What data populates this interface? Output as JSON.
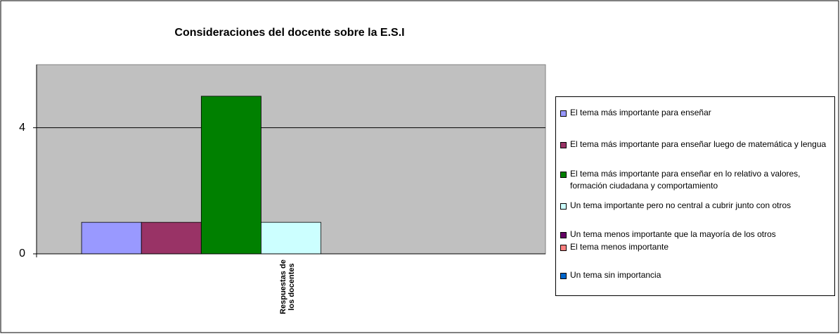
{
  "chart_data": {
    "type": "bar",
    "title": "Consideraciones del docente sobre la E.S.I",
    "categories": [
      "Respuestas de los docentes"
    ],
    "series": [
      {
        "name": "El tema más importante para enseñar",
        "color": "#9999ff",
        "values": [
          1
        ]
      },
      {
        "name": "El tema más importante para enseñar luego de matemática y lengua",
        "color": "#993366",
        "values": [
          1
        ]
      },
      {
        "name": "El tema más importante para enseñar en lo relativo a valores, formación ciudadana y comportamiento",
        "color": "#008000",
        "values": [
          5
        ]
      },
      {
        "name": "Un tema importante pero no central a cubrir junto con otros",
        "color": "#ccffff",
        "values": [
          1
        ]
      },
      {
        "name": "Un tema menos importante que la mayoría de los otros",
        "color": "#660066",
        "values": [
          0
        ]
      },
      {
        "name": "El tema menos importante",
        "color": "#ff8080",
        "values": [
          0
        ]
      },
      {
        "name": "Un tema sin importancia",
        "color": "#0066cc",
        "values": [
          0
        ]
      }
    ],
    "ylim": [
      0,
      6
    ],
    "yticks": [
      0,
      4
    ],
    "grid": true,
    "legend": "right"
  }
}
